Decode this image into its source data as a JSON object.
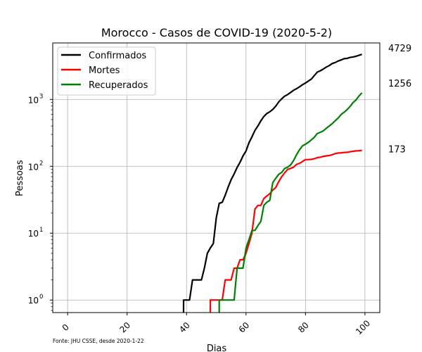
{
  "chart_data": {
    "type": "line",
    "title": "Morocco - Casos de COVID-19 (2020-5-2)",
    "xlabel": "Dias",
    "ylabel": "Pessoas",
    "source_note": "Fonte: JHU CSSE, desde 2020-1-22",
    "xlim": [
      -5,
      105
    ],
    "ylim": [
      0.65,
      7000
    ],
    "yscale": "log",
    "grid": true,
    "legend_position": "top-left",
    "x_ticks": [
      0,
      20,
      40,
      60,
      80,
      100
    ],
    "x_tick_labels": [
      "0",
      "20",
      "40",
      "60",
      "80",
      "100"
    ],
    "y_ticks": [
      1,
      10,
      100,
      1000
    ],
    "y_tick_labels": [
      "10",
      "10",
      "10",
      "10"
    ],
    "y_tick_exponents": [
      "0",
      "1",
      "2",
      "3"
    ],
    "end_labels": [
      "4729",
      "1256",
      "173"
    ],
    "series": [
      {
        "name": "Confirmados",
        "color": "#000000",
        "end_value": 4729,
        "points": [
          [
            39,
            0.6
          ],
          [
            39,
            1
          ],
          [
            40,
            1
          ],
          [
            41,
            1
          ],
          [
            42,
            2
          ],
          [
            43,
            2
          ],
          [
            44,
            2
          ],
          [
            45,
            2
          ],
          [
            46,
            3
          ],
          [
            47,
            5
          ],
          [
            48,
            6
          ],
          [
            49,
            7
          ],
          [
            50,
            17
          ],
          [
            51,
            28
          ],
          [
            52,
            29
          ],
          [
            53,
            37
          ],
          [
            54,
            49
          ],
          [
            55,
            63
          ],
          [
            56,
            77
          ],
          [
            57,
            96
          ],
          [
            58,
            115
          ],
          [
            59,
            143
          ],
          [
            60,
            170
          ],
          [
            61,
            225
          ],
          [
            62,
            275
          ],
          [
            63,
            345
          ],
          [
            64,
            402
          ],
          [
            65,
            479
          ],
          [
            66,
            556
          ],
          [
            67,
            617
          ],
          [
            68,
            654
          ],
          [
            69,
            708
          ],
          [
            70,
            791
          ],
          [
            71,
            919
          ],
          [
            72,
            1021
          ],
          [
            73,
            1120
          ],
          [
            74,
            1184
          ],
          [
            75,
            1275
          ],
          [
            76,
            1374
          ],
          [
            77,
            1448
          ],
          [
            78,
            1545
          ],
          [
            79,
            1661
          ],
          [
            80,
            1763
          ],
          [
            81,
            1888
          ],
          [
            82,
            2024
          ],
          [
            83,
            2283
          ],
          [
            84,
            2564
          ],
          [
            85,
            2685
          ],
          [
            86,
            2855
          ],
          [
            87,
            3046
          ],
          [
            88,
            3209
          ],
          [
            89,
            3446
          ],
          [
            90,
            3568
          ],
          [
            91,
            3758
          ],
          [
            92,
            3897
          ],
          [
            93,
            4065
          ],
          [
            94,
            4120
          ],
          [
            95,
            4252
          ],
          [
            96,
            4321
          ],
          [
            97,
            4423
          ],
          [
            98,
            4569
          ],
          [
            99,
            4729
          ]
        ]
      },
      {
        "name": "Mortes",
        "color": "#ff0000",
        "end_value": 173,
        "points": [
          [
            48,
            0.6
          ],
          [
            48,
            1
          ],
          [
            49,
            1
          ],
          [
            50,
            1
          ],
          [
            51,
            1
          ],
          [
            52,
            1
          ],
          [
            53,
            2
          ],
          [
            54,
            2
          ],
          [
            55,
            2
          ],
          [
            56,
            3
          ],
          [
            57,
            3
          ],
          [
            58,
            4
          ],
          [
            59,
            4
          ],
          [
            60,
            5
          ],
          [
            61,
            7
          ],
          [
            62,
            10
          ],
          [
            63,
            23
          ],
          [
            64,
            26
          ],
          [
            65,
            26
          ],
          [
            66,
            33
          ],
          [
            67,
            36
          ],
          [
            68,
            39
          ],
          [
            69,
            44
          ],
          [
            70,
            48
          ],
          [
            71,
            59
          ],
          [
            72,
            70
          ],
          [
            73,
            80
          ],
          [
            74,
            90
          ],
          [
            75,
            93
          ],
          [
            76,
            97
          ],
          [
            77,
            107
          ],
          [
            78,
            111
          ],
          [
            79,
            118
          ],
          [
            80,
            126
          ],
          [
            81,
            126
          ],
          [
            82,
            127
          ],
          [
            83,
            130
          ],
          [
            84,
            135
          ],
          [
            85,
            137
          ],
          [
            86,
            141
          ],
          [
            87,
            143
          ],
          [
            88,
            145
          ],
          [
            89,
            149
          ],
          [
            90,
            155
          ],
          [
            91,
            158
          ],
          [
            92,
            159
          ],
          [
            93,
            161
          ],
          [
            94,
            162
          ],
          [
            95,
            165
          ],
          [
            96,
            168
          ],
          [
            97,
            170
          ],
          [
            98,
            171
          ],
          [
            99,
            173
          ]
        ]
      },
      {
        "name": "Recuperados",
        "color": "#008000",
        "end_value": 1256,
        "points": [
          [
            51,
            0.6
          ],
          [
            51,
            1
          ],
          [
            52,
            1
          ],
          [
            53,
            1
          ],
          [
            54,
            1
          ],
          [
            55,
            1
          ],
          [
            56,
            1
          ],
          [
            57,
            3
          ],
          [
            58,
            3
          ],
          [
            59,
            3
          ],
          [
            60,
            6
          ],
          [
            61,
            8
          ],
          [
            62,
            11
          ],
          [
            63,
            11
          ],
          [
            64,
            13
          ],
          [
            65,
            15
          ],
          [
            66,
            26
          ],
          [
            67,
            29
          ],
          [
            68,
            31
          ],
          [
            69,
            57
          ],
          [
            70,
            66
          ],
          [
            71,
            76
          ],
          [
            72,
            81
          ],
          [
            73,
            93
          ],
          [
            74,
            97
          ],
          [
            75,
            105
          ],
          [
            76,
            122
          ],
          [
            77,
            149
          ],
          [
            78,
            177
          ],
          [
            79,
            203
          ],
          [
            80,
            214
          ],
          [
            81,
            229
          ],
          [
            82,
            249
          ],
          [
            83,
            273
          ],
          [
            84,
            310
          ],
          [
            85,
            323
          ],
          [
            86,
            340
          ],
          [
            87,
            370
          ],
          [
            88,
            401
          ],
          [
            89,
            435
          ],
          [
            90,
            481
          ],
          [
            91,
            527
          ],
          [
            92,
            597
          ],
          [
            93,
            645
          ],
          [
            94,
            705
          ],
          [
            95,
            784
          ],
          [
            96,
            899
          ],
          [
            97,
            982
          ],
          [
            98,
            1125
          ],
          [
            99,
            1256
          ]
        ]
      }
    ]
  }
}
